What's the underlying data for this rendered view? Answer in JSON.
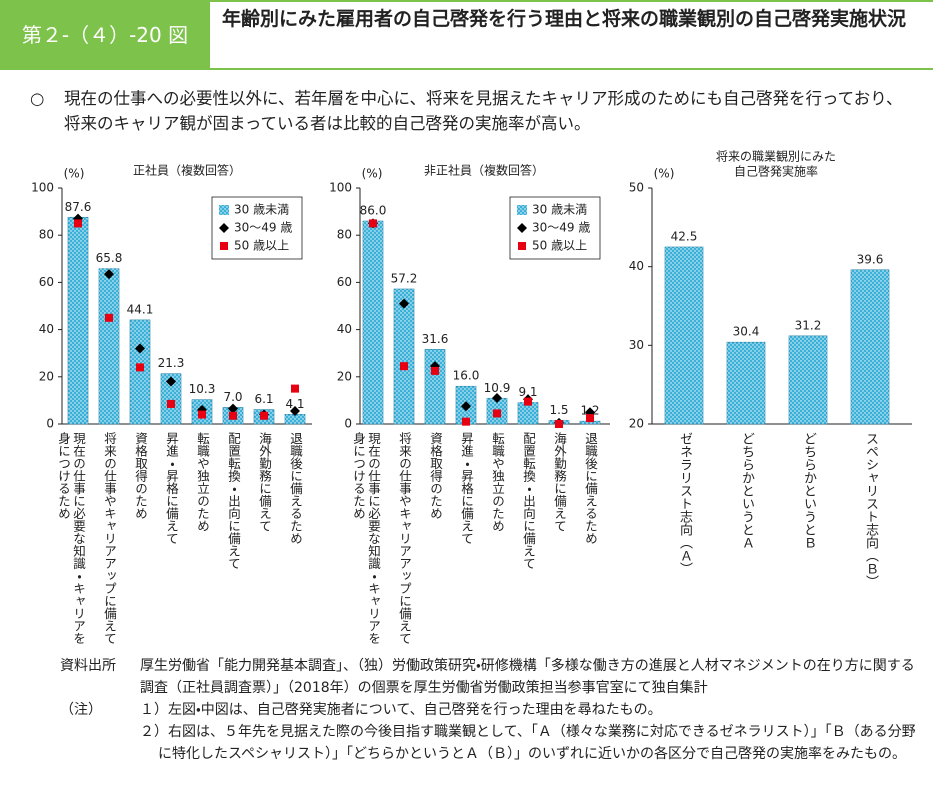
{
  "header": {
    "figure_number": "第２-（４）-20 図",
    "title": "年齢別にみた雇用者の自己啓発を行う理由と将来の職業観別の自己啓発実施状況"
  },
  "summary": {
    "bullet": "○",
    "text": "現在の仕事への必要性以外に、若年層を中心に、将来を見据えたキャリア形成のためにも自己啓発を行っており、将来のキャリア観が固まっている者は比較的自己啓発の実施率が高い。"
  },
  "chart_data": [
    {
      "type": "bar",
      "title": "正社員（複数回答）",
      "unit": "(%)",
      "categories": [
        "現在の仕事に必要な知識・キャリアを身につけるため",
        "将来の仕事やキャリアアップに備えて",
        "資格取得のため",
        "昇進・昇格に備えて",
        "転職や独立のため",
        "配置転換・出向に備えて",
        "海外勤務に備えて",
        "退職後に備えるため"
      ],
      "ylim": [
        0,
        100
      ],
      "yticks": [
        0,
        20,
        40,
        60,
        80,
        100
      ],
      "legend": "upper right",
      "series": [
        {
          "name": "30 歳未満",
          "color": "#3bb0d8",
          "marker": "bar",
          "values": [
            87.6,
            65.8,
            44.1,
            21.3,
            10.3,
            7.0,
            6.1,
            4.1
          ],
          "value_labels": [
            "87.6",
            "65.8",
            "44.1",
            "21.3",
            "10.3",
            "7.0",
            "6.1",
            "4.1"
          ]
        },
        {
          "name": "30～49 歳",
          "color": "#000000",
          "marker": "diamond",
          "values": [
            87,
            63.5,
            32,
            18,
            6,
            6.5,
            4,
            5.5
          ]
        },
        {
          "name": "50 歳以上",
          "color": "#e60012",
          "marker": "square",
          "values": [
            85,
            45,
            24,
            8.5,
            4,
            3.5,
            3.5,
            15
          ]
        }
      ]
    },
    {
      "type": "bar",
      "title": "非正社員（複数回答）",
      "unit": "(%)",
      "categories": [
        "現在の仕事に必要な知識・キャリアを身につけるため",
        "将来の仕事やキャリアアップに備えて",
        "資格取得のため",
        "昇進・昇格に備えて",
        "転職や独立のため",
        "配置転換・出向に備えて",
        "海外勤務に備えて",
        "退職後に備えるため"
      ],
      "ylim": [
        0,
        100
      ],
      "yticks": [
        0,
        20,
        40,
        60,
        80,
        100
      ],
      "legend": "upper right",
      "series": [
        {
          "name": "30 歳未満",
          "color": "#3bb0d8",
          "marker": "bar",
          "values": [
            86.0,
            57.2,
            31.6,
            16.0,
            10.9,
            9.1,
            1.5,
            1.2
          ],
          "value_labels": [
            "86.0",
            "57.2",
            "31.6",
            "16.0",
            "10.9",
            "9.1",
            "1.5",
            "1.2"
          ]
        },
        {
          "name": "30～49 歳",
          "color": "#000000",
          "marker": "diamond",
          "values": [
            85,
            51,
            24.5,
            7.5,
            11,
            10.5,
            0.5,
            5
          ]
        },
        {
          "name": "50 歳以上",
          "color": "#e60012",
          "marker": "square",
          "values": [
            85,
            24.5,
            22.5,
            1,
            4.5,
            9.5,
            0,
            2.5
          ]
        }
      ]
    },
    {
      "type": "bar",
      "title": [
        "将来の職業観別にみた",
        "自己啓発実施率"
      ],
      "unit": "(%)",
      "categories": [
        "ゼネラリスト志向（Ａ）",
        "どちらかというとＡ",
        "どちらかというとＢ",
        "スペシャリスト志向（Ｂ）"
      ],
      "values": [
        42.5,
        30.4,
        31.2,
        39.6
      ],
      "color": "#3bb0d8",
      "ylim": [
        20,
        50
      ],
      "yticks": [
        20,
        30,
        40,
        50
      ]
    }
  ],
  "source": {
    "label": "資料出所",
    "text": "厚生労働省「能力開発基本調査」、（独）労働政策研究・研修機構「多様な働き方の進展と人材マネジメントの在り方に関する調査（正社員調査票）」（2018年）の個票を厚生労働省労働政策担当参事官室にて独自集計"
  },
  "notes": {
    "label": "（注）",
    "items": [
      "１）左図・中図は、自己啓発実施者について、自己啓発を行った理由を尋ねたもの。",
      "２）右図は、５年先を見据えた際の今後目指す職業観として、「Ａ（様々な業務に対応できるゼネラリスト）」「Ｂ（ある分野に特化したスペシャリスト）」「どちらかというとＡ（Ｂ）」のいずれに近いかの各区分で自己啓発の実施率をみたもの。"
    ]
  }
}
